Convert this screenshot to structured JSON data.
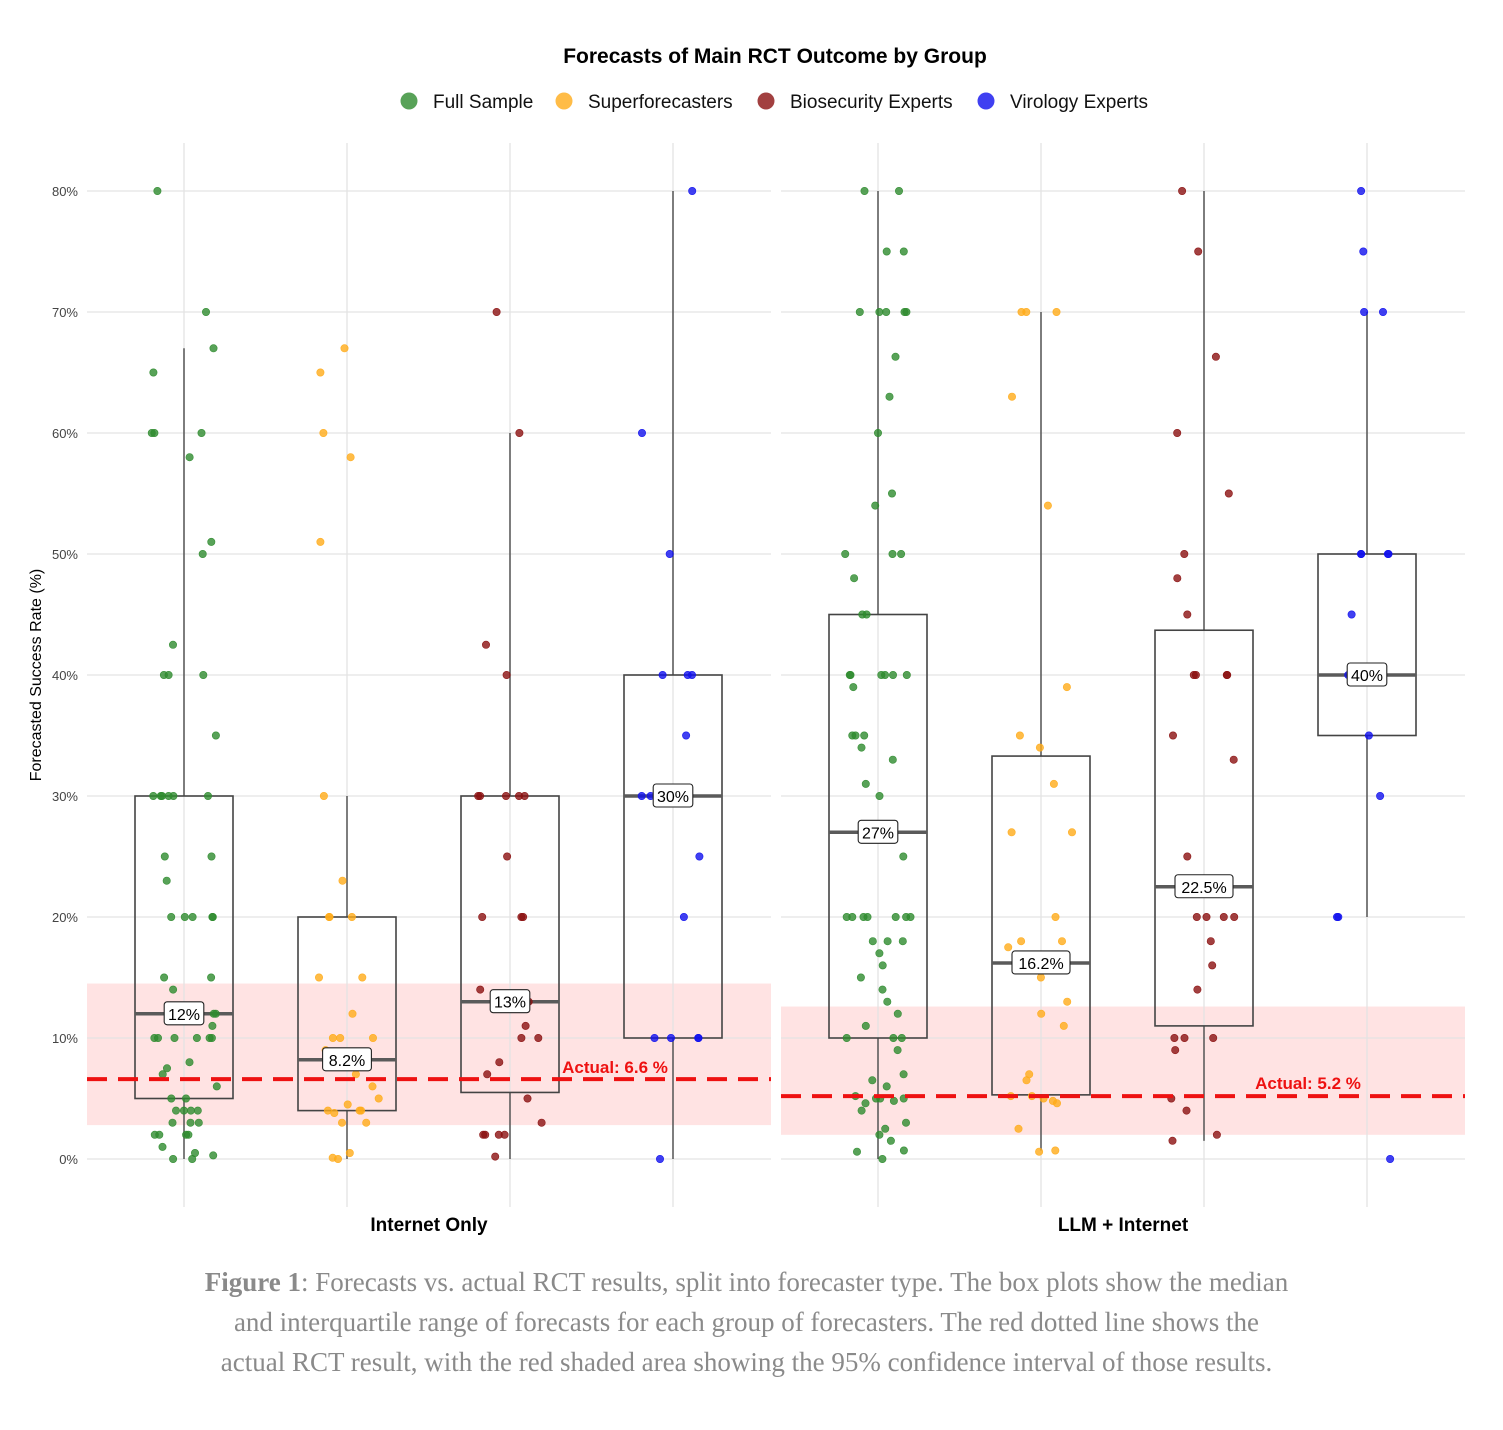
{
  "chart_data": {
    "type": "box+jitter",
    "title": "Forecasts of Main RCT Outcome by Group",
    "ylabel": "Forecasted Success Rate (%)",
    "ylim": [
      -4,
      84
    ],
    "yticks": [
      0,
      10,
      20,
      30,
      40,
      50,
      60,
      70,
      80
    ],
    "ytick_labels": [
      "0%",
      "10%",
      "20%",
      "30%",
      "40%",
      "50%",
      "60%",
      "70%",
      "80%"
    ],
    "legend_position": "top",
    "groups": [
      {
        "name": "Full Sample",
        "color": "#2e8b2e"
      },
      {
        "name": "Superforecasters",
        "color": "#ffab19"
      },
      {
        "name": "Biosecurity Experts",
        "color": "#8b1010"
      },
      {
        "name": "Virology Experts",
        "color": "#1010ee"
      }
    ],
    "panels": [
      {
        "label": "Internet Only",
        "actual": 6.6,
        "actual_label": "Actual: 6.6 %",
        "ci": [
          2.8,
          14.5
        ],
        "boxes": [
          {
            "group": "Full Sample",
            "q1": 5,
            "median": 12,
            "q3": 30,
            "whisker_low": 0,
            "whisker_high": 67,
            "median_label": "12%",
            "points": [
              80,
              70,
              67,
              65,
              60,
              60,
              60,
              58,
              51,
              50,
              42.5,
              40,
              40,
              40,
              35,
              30,
              30,
              30,
              30,
              30,
              30,
              25,
              25,
              23,
              20,
              20,
              20,
              20,
              20,
              15,
              15,
              14,
              12,
              12,
              11,
              10,
              10,
              10,
              10,
              10,
              10,
              8,
              7.5,
              7,
              6,
              5,
              5,
              4,
              4,
              4,
              4,
              3,
              3,
              3,
              2,
              2,
              2,
              2,
              1,
              0.5,
              0.3,
              0,
              0
            ]
          },
          {
            "group": "Superforecasters",
            "q1": 4,
            "median": 8.2,
            "q3": 20,
            "whisker_low": 0,
            "whisker_high": 30,
            "median_label": "8.2%",
            "points": [
              67,
              65,
              60,
              58,
              51,
              30,
              23,
              20,
              20,
              20,
              15,
              15,
              12,
              10,
              10,
              10,
              9,
              8,
              7,
              6,
              5,
              4.5,
              4,
              4,
              4,
              3.8,
              3,
              3,
              0.5,
              0.1,
              0
            ]
          },
          {
            "group": "Biosecurity Experts",
            "q1": 5.5,
            "median": 13,
            "q3": 30,
            "whisker_low": 0,
            "whisker_high": 60,
            "median_label": "13%",
            "points": [
              70,
              60,
              42.5,
              40,
              30,
              30,
              30,
              30,
              30,
              25,
              20,
              20,
              20,
              14,
              13,
              11,
              10,
              10,
              8,
              7,
              5,
              3,
              2,
              2,
              2,
              2,
              0.2
            ]
          },
          {
            "group": "Virology Experts",
            "q1": 10,
            "median": 30,
            "q3": 40,
            "whisker_low": 0,
            "whisker_high": 80,
            "median_label": "30%",
            "points": [
              80,
              60,
              50,
              40,
              40,
              40,
              35,
              30,
              30,
              25,
              20,
              10,
              10,
              10,
              10,
              0
            ]
          }
        ]
      },
      {
        "label": "LLM + Internet",
        "actual": 5.2,
        "actual_label": "Actual: 5.2 %",
        "ci": [
          2.0,
          12.6
        ],
        "boxes": [
          {
            "group": "Full Sample",
            "q1": 10,
            "median": 27,
            "q3": 45,
            "whisker_low": 0,
            "whisker_high": 80,
            "median_label": "27%",
            "points": [
              80,
              80,
              75,
              75,
              70,
              70,
              70,
              70,
              70,
              66.3,
              63,
              60,
              55,
              54,
              50,
              50,
              50,
              48,
              45,
              45,
              40,
              40,
              40,
              40,
              40,
              40,
              39,
              35,
              35,
              35,
              34,
              33,
              31,
              30,
              27,
              25,
              20,
              20,
              20,
              20,
              20,
              20,
              20,
              18,
              18,
              18,
              17,
              16,
              15,
              14,
              13,
              12,
              11,
              10,
              10,
              10,
              9,
              7,
              6.5,
              6,
              5.2,
              5,
              5,
              5,
              4.8,
              4.6,
              4,
              3,
              2.5,
              2,
              1.5,
              0.7,
              0.6,
              0
            ]
          },
          {
            "group": "Superforecasters",
            "q1": 5.3,
            "median": 16.2,
            "q3": 33.3,
            "whisker_low": 0.7,
            "whisker_high": 70,
            "median_label": "16.2%",
            "points": [
              70,
              70,
              70,
              63,
              54,
              39,
              35,
              34,
              31,
              27,
              27,
              20,
              18,
              18,
              17.5,
              15,
              13,
              12,
              11,
              7,
              6.5,
              5.2,
              5.2,
              5,
              4.8,
              4.6,
              2.5,
              0.7,
              0.6
            ]
          },
          {
            "group": "Biosecurity Experts",
            "q1": 11,
            "median": 22.5,
            "q3": 43.7,
            "whisker_low": 1.5,
            "whisker_high": 80,
            "median_label": "22.5%",
            "points": [
              80,
              75,
              66.3,
              60,
              55,
              50,
              48,
              45,
              40,
              40,
              40,
              40,
              35,
              33,
              25,
              20,
              20,
              20,
              20,
              18,
              16,
              14,
              10,
              10,
              10,
              9,
              5,
              4,
              2,
              1.5
            ]
          },
          {
            "group": "Virology Experts",
            "q1": 35,
            "median": 40,
            "q3": 50,
            "whisker_low": 20,
            "whisker_high": 70,
            "median_label": "40%",
            "points": [
              80,
              75,
              70,
              70,
              50,
              50,
              50,
              50,
              45,
              40,
              35,
              30,
              20,
              20,
              0
            ]
          }
        ]
      }
    ]
  },
  "caption": {
    "label": "Figure 1",
    "text": ": Forecasts vs. actual RCT results, split into forecaster type. The box plots show the median and interquartile range of forecasts for each group of forecasters. The red dotted line shows the actual RCT result, with the red shaded area showing the 95% confidence interval of those results."
  }
}
